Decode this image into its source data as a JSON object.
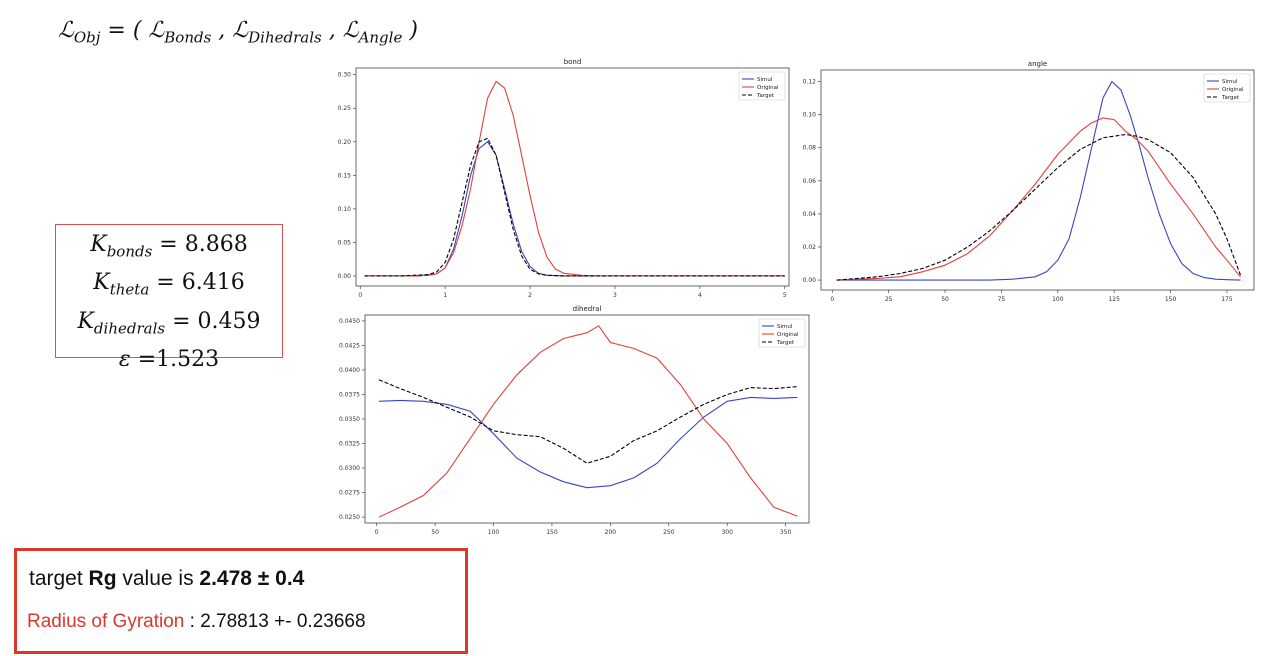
{
  "formula": {
    "lhs": "ℒ",
    "lhs_sub": "Obj",
    "t1": "ℒ",
    "t1_sub": "Bonds",
    "t2": "ℒ",
    "t2_sub": "Dihedrals",
    "t3": "ℒ",
    "t3_sub": "Angle"
  },
  "params": [
    {
      "label": "K",
      "sub": "bonds",
      "value": "= 8.868"
    },
    {
      "label": "K",
      "sub": "theta",
      "value": "= 6.416"
    },
    {
      "label": "K",
      "sub": "dihedrals",
      "value": "= 0.459"
    },
    {
      "label": "ε",
      "sub": "",
      "value": "=1.523"
    }
  ],
  "rg": {
    "line1_prefix": "target ",
    "line1_bold1": "Rg",
    "line1_middle": " value is ",
    "line1_bold2": "2.478 ± 0.4",
    "line2_label": "Radius of Gyration",
    "line2_value": " : 2.78813 +- 0.23668"
  },
  "colors": {
    "simul": "#3b44c4",
    "original": "#e0413b",
    "target": "#000000",
    "highlight_border": "#d9382c"
  },
  "chart_data": [
    {
      "type": "line",
      "title": "bond",
      "xlabel": "",
      "ylabel": "",
      "xlim": [
        -0.05,
        5.05
      ],
      "ylim": [
        -0.015,
        0.31
      ],
      "xticks": [
        0,
        1,
        2,
        3,
        4,
        5
      ],
      "yticks": [
        0.0,
        0.05,
        0.1,
        0.15,
        0.2,
        0.25,
        0.3
      ],
      "ydecimals": 2,
      "legend_position": "top-right",
      "series": [
        {
          "name": "Simul",
          "color": "#3b44c4",
          "dash": "",
          "x": [
            0.05,
            0.5,
            0.8,
            0.9,
            1.0,
            1.1,
            1.2,
            1.3,
            1.4,
            1.5,
            1.6,
            1.7,
            1.8,
            1.9,
            2.0,
            2.1,
            2.2,
            2.4,
            2.6,
            5.0
          ],
          "y": [
            0,
            0,
            0.001,
            0.003,
            0.012,
            0.04,
            0.09,
            0.15,
            0.19,
            0.2,
            0.18,
            0.13,
            0.078,
            0.037,
            0.014,
            0.004,
            0.001,
            0,
            0,
            0
          ]
        },
        {
          "name": "Original",
          "color": "#e0413b",
          "dash": "",
          "x": [
            0.05,
            0.7,
            0.9,
            1.0,
            1.1,
            1.2,
            1.3,
            1.4,
            1.5,
            1.6,
            1.7,
            1.8,
            1.9,
            2.0,
            2.1,
            2.2,
            2.3,
            2.4,
            2.6,
            2.8,
            5.0
          ],
          "y": [
            0,
            0,
            0.003,
            0.012,
            0.035,
            0.075,
            0.13,
            0.2,
            0.265,
            0.29,
            0.28,
            0.24,
            0.18,
            0.12,
            0.065,
            0.028,
            0.01,
            0.004,
            0.001,
            0,
            0
          ]
        },
        {
          "name": "Target",
          "color": "#000000",
          "dash": "4 2",
          "x": [
            0.05,
            0.5,
            0.8,
            0.9,
            1.0,
            1.1,
            1.2,
            1.3,
            1.4,
            1.5,
            1.6,
            1.7,
            1.8,
            1.9,
            2.0,
            2.1,
            2.2,
            2.4,
            2.6,
            5.0
          ],
          "y": [
            0,
            0,
            0.002,
            0.006,
            0.02,
            0.055,
            0.11,
            0.165,
            0.2,
            0.205,
            0.18,
            0.125,
            0.07,
            0.03,
            0.01,
            0.003,
            0.001,
            0,
            0,
            0
          ]
        }
      ]
    },
    {
      "type": "line",
      "title": "angle",
      "xlabel": "",
      "ylabel": "",
      "xlim": [
        -5,
        187
      ],
      "ylim": [
        -0.006,
        0.127
      ],
      "xticks": [
        0,
        25,
        50,
        75,
        100,
        125,
        150,
        175
      ],
      "yticks": [
        0.0,
        0.02,
        0.04,
        0.06,
        0.08,
        0.1,
        0.12
      ],
      "ydecimals": 2,
      "legend_position": "top-right",
      "series": [
        {
          "name": "Simul",
          "color": "#3b44c4",
          "dash": "",
          "x": [
            2,
            50,
            70,
            80,
            90,
            95,
            100,
            105,
            110,
            115,
            120,
            124,
            128,
            132,
            136,
            140,
            145,
            150,
            155,
            160,
            165,
            170,
            175,
            181
          ],
          "y": [
            0,
            0,
            0,
            0.0005,
            0.002,
            0.005,
            0.012,
            0.025,
            0.05,
            0.08,
            0.11,
            0.12,
            0.115,
            0.1,
            0.082,
            0.062,
            0.04,
            0.022,
            0.01,
            0.004,
            0.0015,
            0.0005,
            0.0002,
            0
          ]
        },
        {
          "name": "Original",
          "color": "#e0413b",
          "dash": "",
          "x": [
            2,
            20,
            30,
            40,
            50,
            60,
            70,
            80,
            90,
            100,
            105,
            110,
            115,
            120,
            125,
            130,
            135,
            140,
            145,
            150,
            160,
            170,
            175,
            181
          ],
          "y": [
            0,
            0.001,
            0.002,
            0.005,
            0.009,
            0.016,
            0.027,
            0.042,
            0.058,
            0.076,
            0.083,
            0.09,
            0.095,
            0.098,
            0.097,
            0.09,
            0.085,
            0.078,
            0.068,
            0.058,
            0.04,
            0.02,
            0.012,
            0.002
          ]
        },
        {
          "name": "Target",
          "color": "#000000",
          "dash": "4 2",
          "x": [
            2,
            20,
            30,
            40,
            50,
            60,
            70,
            80,
            90,
            100,
            110,
            120,
            130,
            135,
            140,
            150,
            160,
            170,
            175,
            181
          ],
          "y": [
            0,
            0.002,
            0.004,
            0.007,
            0.012,
            0.02,
            0.03,
            0.042,
            0.055,
            0.068,
            0.079,
            0.086,
            0.088,
            0.087,
            0.085,
            0.077,
            0.062,
            0.04,
            0.025,
            0.003
          ]
        }
      ]
    },
    {
      "type": "line",
      "title": "dihedral",
      "xlabel": "",
      "ylabel": "",
      "xlim": [
        -10,
        370
      ],
      "ylim": [
        0.0244,
        0.0456
      ],
      "xticks": [
        0,
        50,
        100,
        150,
        200,
        250,
        300,
        350
      ],
      "yticks": [
        0.025,
        0.0275,
        0.03,
        0.0325,
        0.035,
        0.0375,
        0.04,
        0.0425,
        0.045
      ],
      "ydecimals": 4,
      "legend_position": "top-right",
      "series": [
        {
          "name": "Simul",
          "color": "#3b44c4",
          "dash": "",
          "x": [
            2,
            20,
            40,
            60,
            80,
            100,
            120,
            140,
            160,
            180,
            200,
            220,
            240,
            260,
            280,
            300,
            320,
            340,
            360
          ],
          "y": [
            0.0368,
            0.0369,
            0.0368,
            0.0365,
            0.0358,
            0.0335,
            0.031,
            0.0296,
            0.0286,
            0.028,
            0.0282,
            0.029,
            0.0305,
            0.033,
            0.0352,
            0.0368,
            0.0372,
            0.0371,
            0.0372
          ]
        },
        {
          "name": "Original",
          "color": "#e0413b",
          "dash": "",
          "x": [
            2,
            20,
            40,
            60,
            80,
            100,
            120,
            140,
            160,
            180,
            190,
            200,
            220,
            240,
            260,
            280,
            300,
            320,
            340,
            360
          ],
          "y": [
            0.025,
            0.026,
            0.0272,
            0.0295,
            0.033,
            0.0365,
            0.0395,
            0.0418,
            0.0432,
            0.0438,
            0.0445,
            0.0428,
            0.0422,
            0.0412,
            0.0385,
            0.035,
            0.0325,
            0.029,
            0.026,
            0.0251
          ]
        },
        {
          "name": "Target",
          "color": "#000000",
          "dash": "4 2",
          "x": [
            2,
            20,
            40,
            60,
            80,
            100,
            120,
            140,
            160,
            180,
            200,
            220,
            240,
            260,
            280,
            300,
            320,
            340,
            360
          ],
          "y": [
            0.039,
            0.0381,
            0.0372,
            0.0362,
            0.0352,
            0.0338,
            0.0334,
            0.0332,
            0.032,
            0.0305,
            0.0312,
            0.0328,
            0.0338,
            0.0352,
            0.0365,
            0.0375,
            0.0382,
            0.0381,
            0.0383
          ]
        }
      ]
    }
  ]
}
